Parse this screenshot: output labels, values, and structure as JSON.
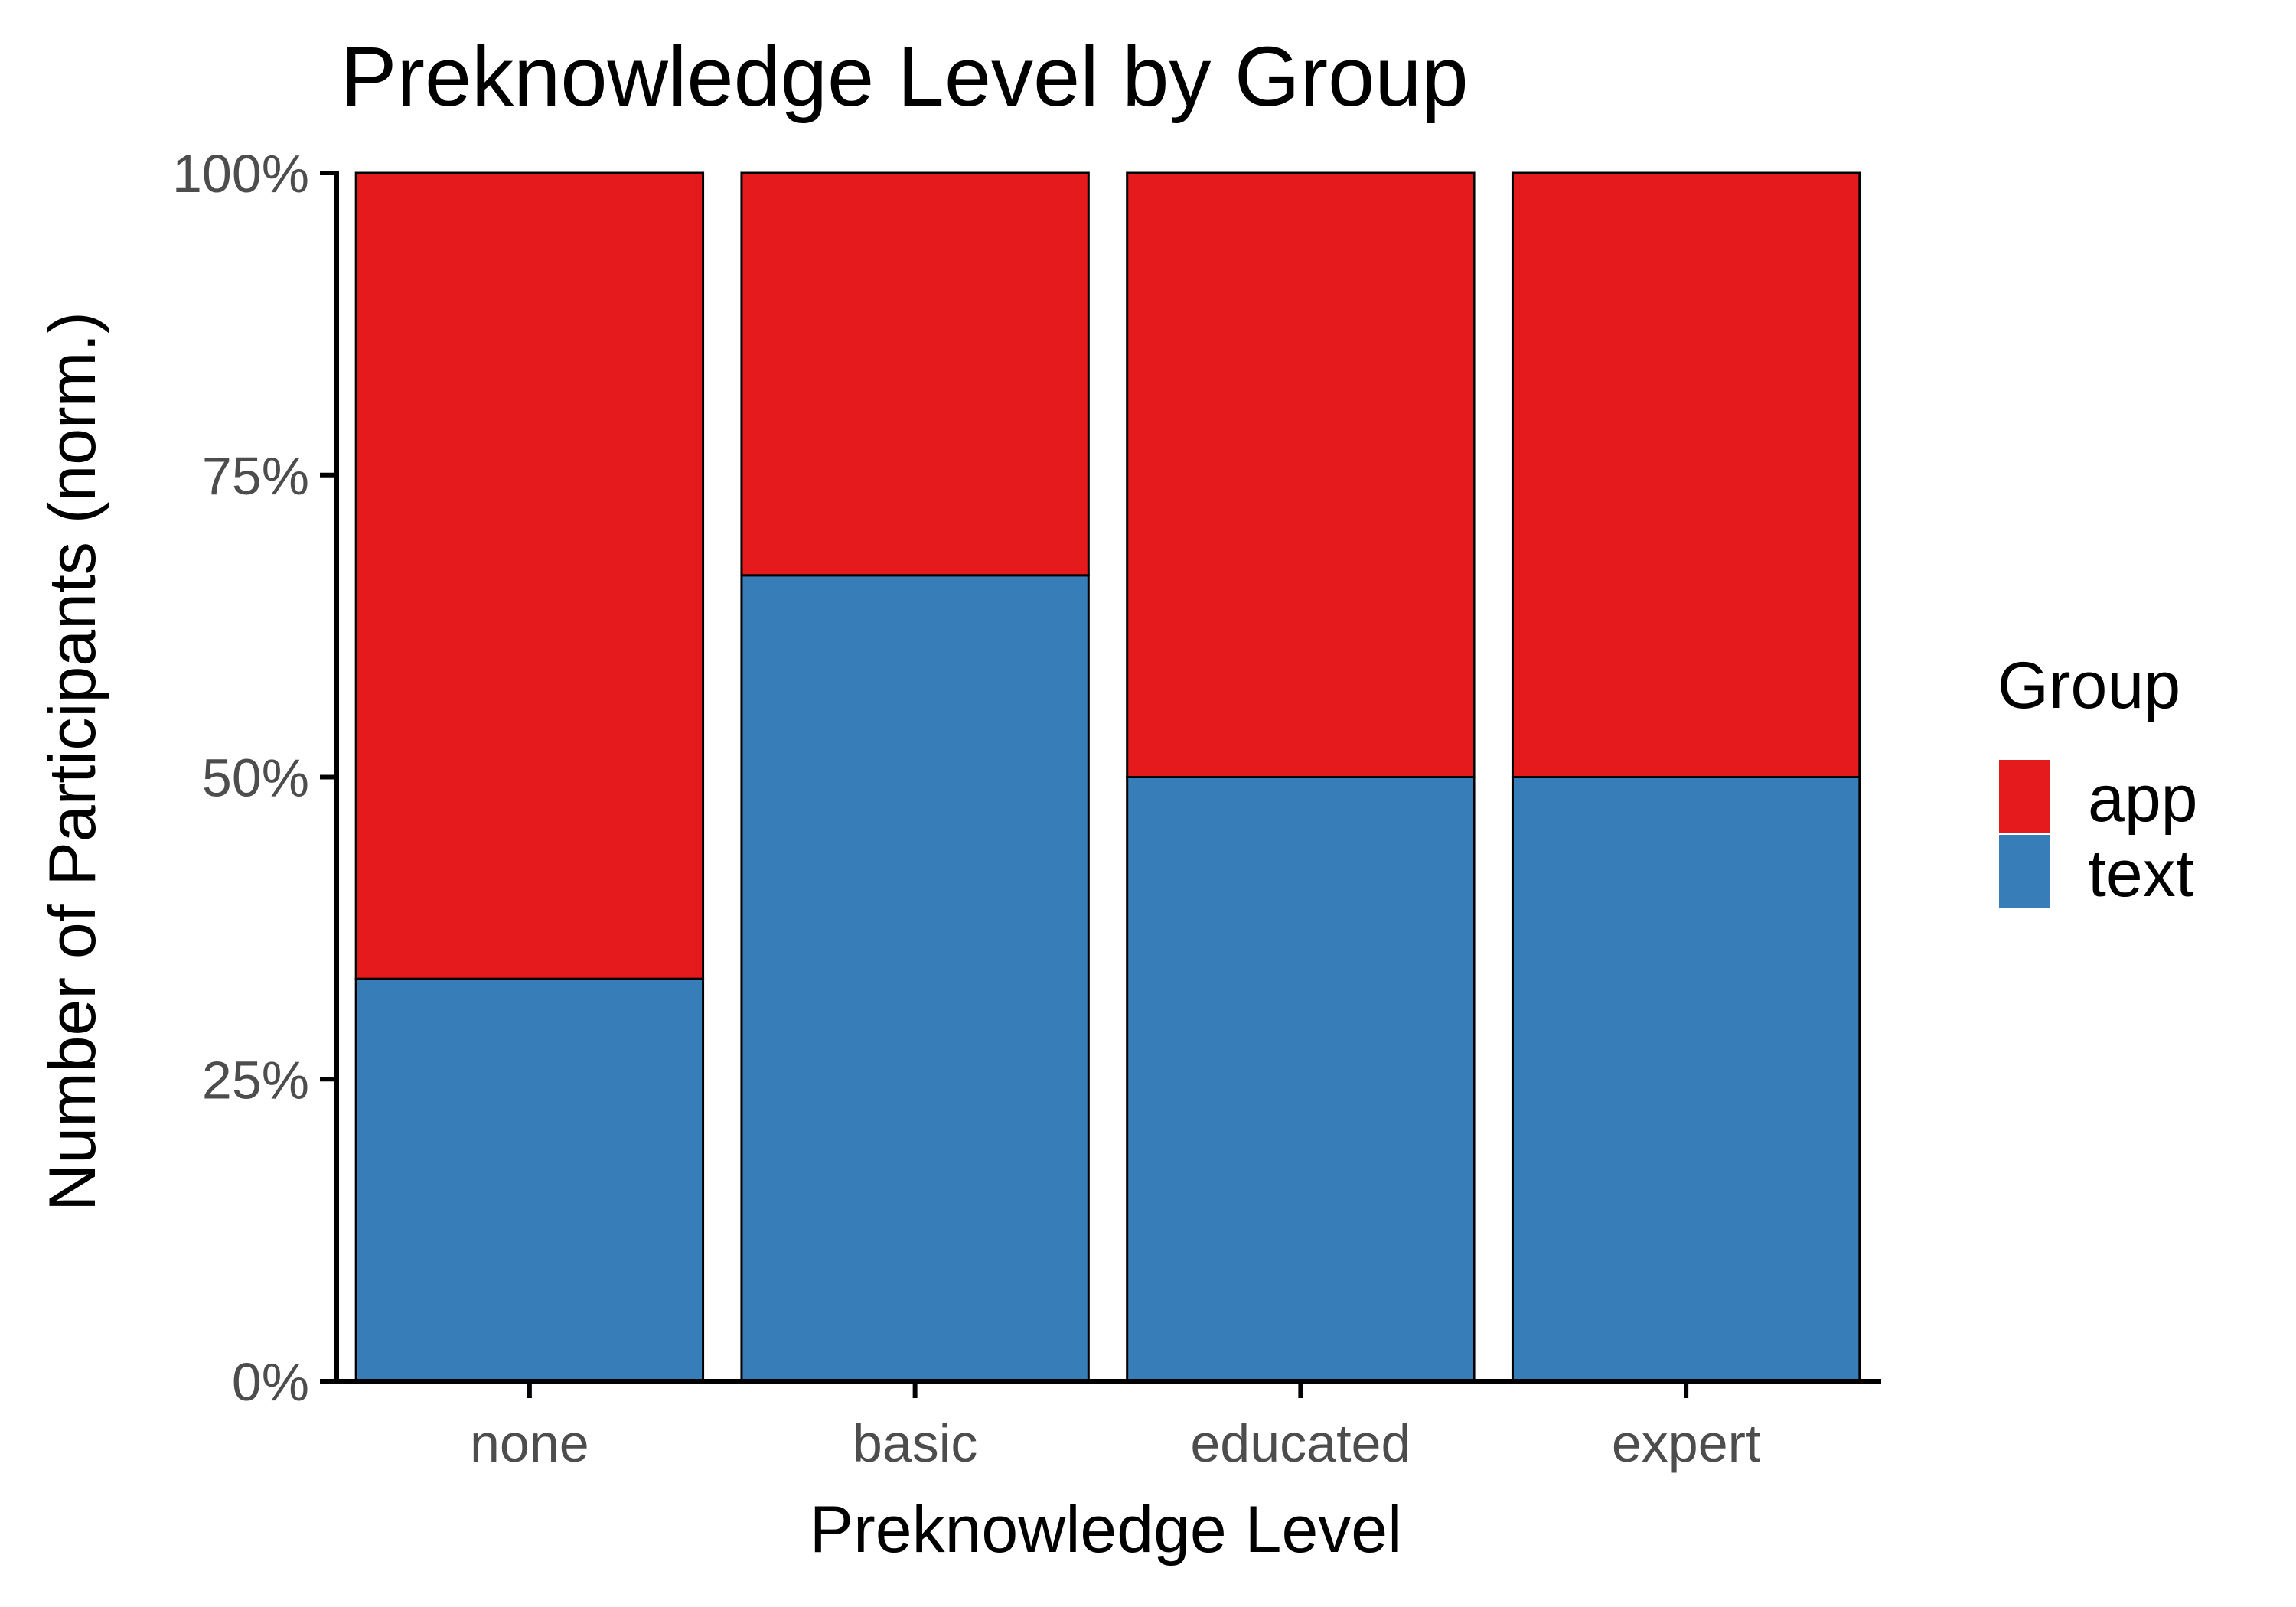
{
  "chart_data": {
    "type": "bar",
    "stacked": true,
    "normalized": true,
    "title": "Preknowledge Level by Group",
    "xlabel": "Preknowledge Level",
    "ylabel": "Number of Participants (norm.)",
    "categories": [
      "none",
      "basic",
      "educated",
      "expert"
    ],
    "ylim": [
      0,
      1
    ],
    "yticks": [
      {
        "value": 0,
        "label": "0%"
      },
      {
        "value": 0.25,
        "label": "25%"
      },
      {
        "value": 0.5,
        "label": "50%"
      },
      {
        "value": 0.75,
        "label": "75%"
      },
      {
        "value": 1,
        "label": "100%"
      }
    ],
    "series": [
      {
        "name": "text",
        "color": "#377eb8",
        "values": [
          0.333,
          0.667,
          0.5,
          0.5
        ]
      },
      {
        "name": "app",
        "color": "#e41a1c",
        "values": [
          0.667,
          0.333,
          0.5,
          0.5
        ]
      }
    ],
    "legend": {
      "title": "Group",
      "position": "right",
      "items": [
        {
          "label": "app",
          "color": "#e41a1c"
        },
        {
          "label": "text",
          "color": "#377eb8"
        }
      ]
    },
    "grid": false
  }
}
